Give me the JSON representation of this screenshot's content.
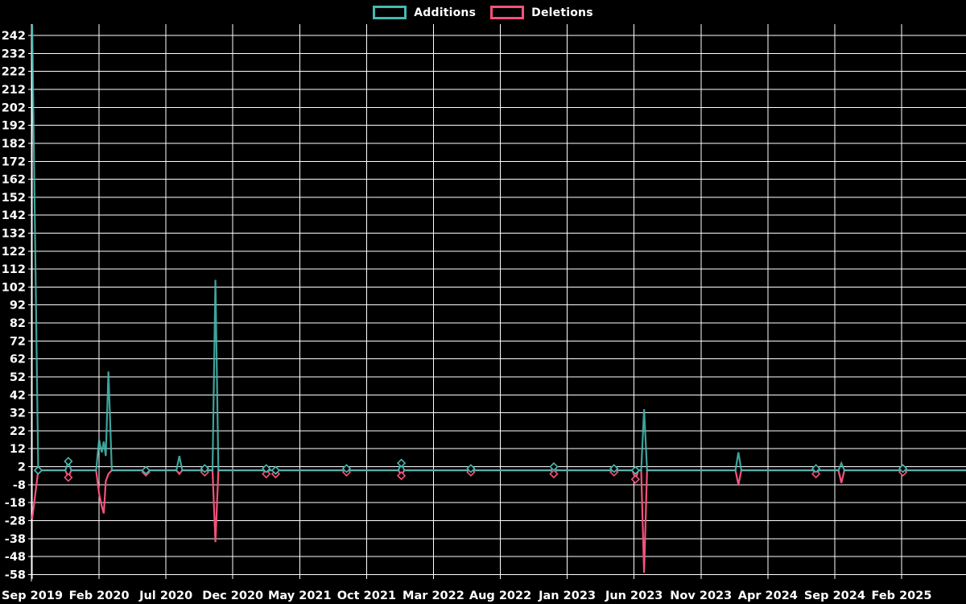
{
  "legend": {
    "additions": {
      "label": "Additions",
      "color": "#46b9b1"
    },
    "deletions": {
      "label": "Deletions",
      "color": "#f4527b"
    }
  },
  "chart_data": {
    "type": "line",
    "title": "",
    "xlabel": "",
    "ylabel": "",
    "grid": true,
    "legend_position": "top-center",
    "background": "#000000",
    "grid_color": "#ffffff",
    "text_color": "#ffffff",
    "baseline": 0,
    "fill_between_points_with_zero": true,
    "y_axis": {
      "min": -58,
      "max": 242,
      "step": 10,
      "ticks": [
        242,
        232,
        222,
        212,
        202,
        192,
        182,
        172,
        162,
        152,
        142,
        132,
        122,
        112,
        102,
        92,
        82,
        72,
        62,
        52,
        42,
        32,
        22,
        12,
        2,
        -8,
        -18,
        -28,
        -38,
        -48,
        -58
      ]
    },
    "x_axis": {
      "ticks": [
        {
          "label": "Sep 2019",
          "m": 0
        },
        {
          "label": "Feb 2020",
          "m": 5
        },
        {
          "label": "Jul 2020",
          "m": 10
        },
        {
          "label": "Dec 2020",
          "m": 15
        },
        {
          "label": "May 2021",
          "m": 20
        },
        {
          "label": "Oct 2021",
          "m": 25
        },
        {
          "label": "Mar 2022",
          "m": 30
        },
        {
          "label": "Aug 2022",
          "m": 35
        },
        {
          "label": "Jan 2023",
          "m": 40
        },
        {
          "label": "Jun 2023",
          "m": 45
        },
        {
          "label": "Nov 2023",
          "m": 50
        },
        {
          "label": "Apr 2024",
          "m": 55
        },
        {
          "label": "Sep 2024",
          "m": 60
        },
        {
          "label": "Feb 2025",
          "m": 65
        }
      ]
    },
    "series": [
      {
        "name": "Additions",
        "key": "a",
        "color": "#46b9b1"
      },
      {
        "name": "Deletions",
        "key": "d",
        "color": "#f4527b"
      }
    ],
    "points": [
      {
        "m": 0,
        "date": "Sep 2019",
        "a": 248,
        "d": -27
      },
      {
        "m": 0.45,
        "date": "Sep 2019",
        "a": 0,
        "d": 0,
        "marker": true
      },
      {
        "m": 2.7,
        "date": "Dec 2019",
        "a": 5,
        "d": -4,
        "marker": true
      },
      {
        "m": 5.0,
        "date": "Feb 2020",
        "a": 17,
        "d": -13
      },
      {
        "m": 5.2,
        "date": "Feb 2020",
        "a": 10,
        "d": -20
      },
      {
        "m": 5.35,
        "date": "Mar 2020",
        "a": 16,
        "d": -24
      },
      {
        "m": 5.5,
        "date": "Mar 2020",
        "a": 8,
        "d": -6
      },
      {
        "m": 5.7,
        "date": "Mar 2020",
        "a": 55,
        "d": -2
      },
      {
        "m": 5.95,
        "date": "Mar 2020",
        "a": 0,
        "d": 0
      },
      {
        "m": 8.5,
        "date": "Jun 2020",
        "a": 0,
        "d": -1,
        "marker": true
      },
      {
        "m": 11.0,
        "date": "Aug 2020",
        "a": 8,
        "d": -2
      },
      {
        "m": 12.9,
        "date": "Oct 2020",
        "a": 1,
        "d": -1,
        "marker": true
      },
      {
        "m": 13.7,
        "date": "Nov 2020",
        "a": 106,
        "d": -40
      },
      {
        "m": 17.5,
        "date": "Feb 2021",
        "a": 1,
        "d": -2,
        "marker": true
      },
      {
        "m": 18.2,
        "date": "Mar 2021",
        "a": 0,
        "d": -2,
        "marker": true
      },
      {
        "m": 23.5,
        "date": "Aug 2021",
        "a": 1,
        "d": -1,
        "marker": true
      },
      {
        "m": 27.6,
        "date": "Jan 2022",
        "a": 4,
        "d": -3,
        "marker": true
      },
      {
        "m": 32.8,
        "date": "Jun 2022",
        "a": 1,
        "d": -1,
        "marker": true
      },
      {
        "m": 39.0,
        "date": "Dec 2022",
        "a": 2,
        "d": -2,
        "marker": true
      },
      {
        "m": 43.5,
        "date": "Apr 2023",
        "a": 1,
        "d": -1,
        "marker": true
      },
      {
        "m": 45.1,
        "date": "Jun 2023",
        "a": 0,
        "d": -5,
        "marker": true
      },
      {
        "m": 45.75,
        "date": "Jun 2023",
        "a": 34,
        "d": -57
      },
      {
        "m": 52.8,
        "date": "Feb 2024",
        "a": 10,
        "d": -8
      },
      {
        "m": 58.6,
        "date": "Aug 2024",
        "a": 1,
        "d": -2,
        "marker": true
      },
      {
        "m": 60.5,
        "date": "Oct 2024",
        "a": 4,
        "d": -7
      },
      {
        "m": 65.1,
        "date": "Feb 2025",
        "a": 1,
        "d": -1,
        "marker": true
      }
    ]
  }
}
